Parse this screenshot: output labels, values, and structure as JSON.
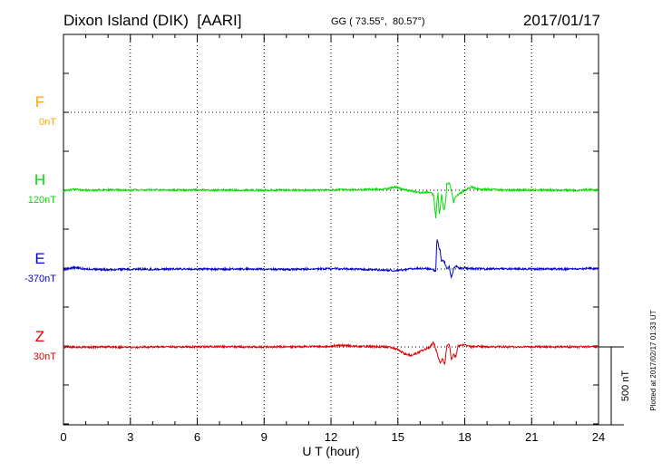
{
  "header": {
    "station": "Dixon Island (DIK)  [AARI]",
    "coords": "GG ( 73.55°,  80.57°)",
    "date": "2017/01/17"
  },
  "side_note": "Plotted at 2017/02/17 01:33 UT",
  "scale_label": "500 nT",
  "chart_data": {
    "type": "line",
    "xlabel": "U T (hour)",
    "xlim": [
      0,
      24
    ],
    "x_ticks": [
      "0",
      "3",
      "6",
      "9",
      "12",
      "15",
      "18",
      "21",
      "24"
    ],
    "series": [
      {
        "name": "F",
        "baseline": "0nT",
        "color": "#ffa500",
        "x": [],
        "y": []
      },
      {
        "name": "H",
        "baseline": "120nT",
        "color": "#00dd00",
        "x": [
          0,
          0.5,
          1,
          2,
          3,
          4,
          5,
          6,
          7,
          8,
          9,
          10,
          11,
          12,
          13,
          14,
          14.5,
          14.9,
          15.2,
          15.6,
          16.0,
          16.4,
          16.6,
          16.7,
          16.75,
          16.8,
          16.85,
          16.9,
          16.95,
          17.0,
          17.05,
          17.1,
          17.15,
          17.2,
          17.3,
          17.4,
          17.5,
          17.6,
          17.8,
          18.0,
          18.3,
          18.7,
          19,
          20,
          21,
          22,
          23,
          23.6,
          24
        ],
        "y": [
          -5,
          5,
          0,
          2,
          0,
          3,
          0,
          2,
          1,
          0,
          0,
          2,
          0,
          3,
          3,
          5,
          8,
          20,
          5,
          -5,
          -15,
          -10,
          -30,
          -180,
          -80,
          -10,
          -160,
          -120,
          -20,
          -70,
          -130,
          -110,
          -60,
          40,
          50,
          0,
          -80,
          -40,
          -20,
          0,
          20,
          5,
          5,
          0,
          2,
          0,
          0,
          3,
          0
        ]
      },
      {
        "name": "E",
        "baseline": "-370nT",
        "color": "#0000cc",
        "x": [
          0,
          0.5,
          1,
          2,
          3,
          4,
          5,
          6,
          7,
          8,
          9,
          10,
          11,
          12,
          13,
          14,
          15,
          15.5,
          16,
          16.5,
          16.7,
          16.75,
          16.8,
          16.85,
          16.9,
          16.95,
          17.0,
          17.1,
          17.2,
          17.3,
          17.4,
          17.5,
          17.6,
          17.8,
          18,
          19,
          20,
          21,
          22,
          23,
          23.6,
          24
        ],
        "y": [
          -5,
          10,
          0,
          -5,
          0,
          -2,
          0,
          0,
          -2,
          0,
          0,
          -3,
          0,
          2,
          0,
          -5,
          -10,
          0,
          5,
          0,
          -15,
          200,
          170,
          130,
          120,
          50,
          60,
          40,
          0,
          20,
          -60,
          0,
          20,
          5,
          5,
          0,
          2,
          0,
          0,
          0,
          5,
          0
        ]
      },
      {
        "name": "Z",
        "baseline": "30nT",
        "color": "#dd0000",
        "x": [
          0,
          1,
          2,
          3,
          4,
          5,
          6,
          7,
          8,
          9,
          10,
          11,
          12,
          12.5,
          13,
          14,
          14.5,
          15,
          15.3,
          15.6,
          16.0,
          16.4,
          16.6,
          16.8,
          16.9,
          17.0,
          17.1,
          17.2,
          17.3,
          17.4,
          17.5,
          17.6,
          17.7,
          17.8,
          18.0,
          18.3,
          18.6,
          19,
          20,
          21,
          22,
          23,
          24
        ],
        "y": [
          0,
          -2,
          0,
          -3,
          0,
          0,
          0,
          2,
          0,
          0,
          0,
          2,
          5,
          10,
          5,
          2,
          0,
          -15,
          -45,
          -55,
          -30,
          -5,
          30,
          -60,
          -105,
          -75,
          -115,
          10,
          20,
          -80,
          -50,
          -65,
          5,
          10,
          15,
          0,
          5,
          0,
          0,
          0,
          0,
          0,
          0
        ]
      }
    ]
  }
}
